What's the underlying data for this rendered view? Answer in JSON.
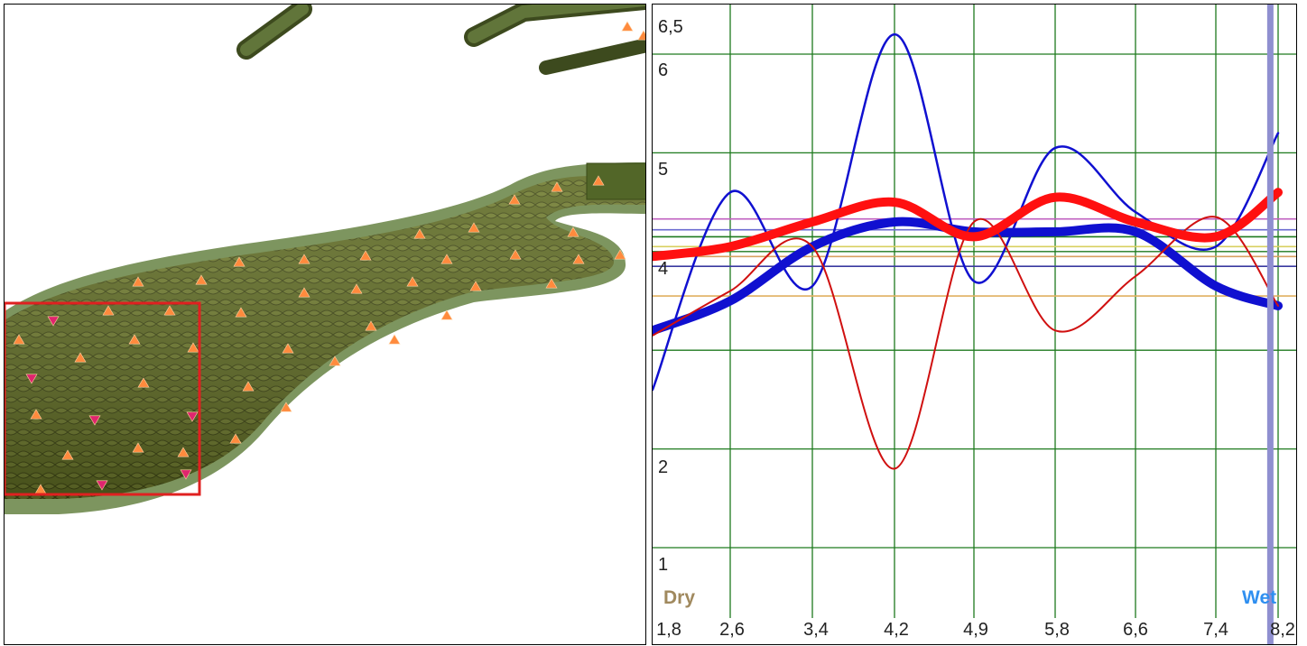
{
  "model_view": {
    "organ_color": "#5a6620",
    "halo_color": "#6f8a4e",
    "marker_orange": "#ff8a3d",
    "marker_magenta": "#e0256e",
    "selection_color": "#e02020"
  },
  "chart": {
    "dry_label": "Dry",
    "wet_label": "Wet",
    "colors": {
      "grid": "#1e7a1e",
      "blue": "#1010d0",
      "red": "#d01010",
      "cursor": "#8f8fd0"
    }
  },
  "chart_data": {
    "type": "line",
    "x_ticks": [
      "1,8",
      "2,6",
      "3,4",
      "4,2",
      "4,9",
      "5,8",
      "6,6",
      "7,4",
      "8,2"
    ],
    "y_ticks": [
      "6,5",
      "6",
      "5",
      "4",
      "2",
      "1"
    ],
    "series": [
      {
        "style": "thin-blue",
        "points": [
          [
            1.8,
            2.6
          ],
          [
            2.6,
            4.6
          ],
          [
            3.4,
            3.65
          ],
          [
            4.2,
            6.2
          ],
          [
            4.9,
            3.7
          ],
          [
            5.8,
            5.05
          ],
          [
            6.6,
            4.4
          ],
          [
            7.4,
            4.05
          ],
          [
            8.2,
            5.2
          ]
        ]
      },
      {
        "style": "thick-blue",
        "points": [
          [
            1.8,
            3.2
          ],
          [
            2.6,
            3.5
          ],
          [
            3.4,
            4.05
          ],
          [
            4.2,
            4.3
          ],
          [
            4.9,
            4.2
          ],
          [
            5.8,
            4.2
          ],
          [
            6.6,
            4.2
          ],
          [
            7.4,
            3.65
          ],
          [
            8.2,
            3.45
          ]
        ]
      },
      {
        "style": "thin-red",
        "points": [
          [
            1.8,
            3.15
          ],
          [
            2.6,
            3.6
          ],
          [
            3.4,
            4.05
          ],
          [
            4.2,
            1.8
          ],
          [
            4.9,
            4.3
          ],
          [
            5.8,
            3.2
          ],
          [
            6.6,
            3.75
          ],
          [
            7.4,
            4.35
          ],
          [
            8.2,
            3.45
          ]
        ]
      },
      {
        "style": "thick-red",
        "points": [
          [
            1.8,
            3.95
          ],
          [
            2.6,
            4.05
          ],
          [
            3.4,
            4.3
          ],
          [
            4.2,
            4.5
          ],
          [
            4.9,
            4.15
          ],
          [
            5.8,
            4.55
          ],
          [
            6.6,
            4.3
          ],
          [
            7.4,
            4.15
          ],
          [
            8.2,
            4.6
          ]
        ]
      }
    ],
    "reference_lines": [
      {
        "y": 4.33,
        "color": "#c060c0"
      },
      {
        "y": 4.22,
        "color": "#6a6ad0"
      },
      {
        "y": 4.15,
        "color": "#1e7a1e"
      },
      {
        "y": 4.05,
        "color": "#d8d060"
      },
      {
        "y": 3.95,
        "color": "#d8a060"
      },
      {
        "y": 3.85,
        "color": "#3a3aa0"
      },
      {
        "y": 3.55,
        "color": "#e0b060"
      }
    ],
    "cursor_x": 8.1,
    "grid": true
  }
}
